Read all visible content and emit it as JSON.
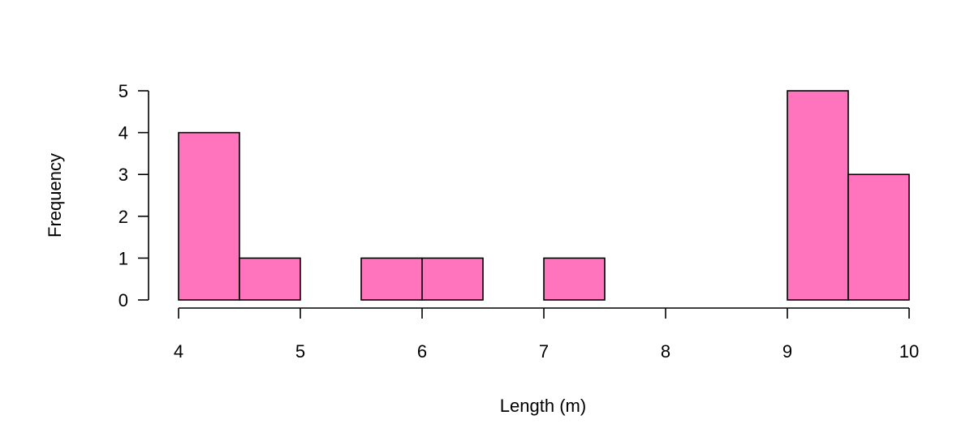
{
  "chart_data": {
    "type": "bar",
    "subtype": "histogram",
    "xlabel": "Length (m)",
    "ylabel": "Frequency",
    "bins": [
      {
        "x0": 4.0,
        "x1": 4.5,
        "count": 4
      },
      {
        "x0": 4.5,
        "x1": 5.0,
        "count": 1
      },
      {
        "x0": 5.0,
        "x1": 5.5,
        "count": 0
      },
      {
        "x0": 5.5,
        "x1": 6.0,
        "count": 1
      },
      {
        "x0": 6.0,
        "x1": 6.5,
        "count": 1
      },
      {
        "x0": 6.5,
        "x1": 7.0,
        "count": 0
      },
      {
        "x0": 7.0,
        "x1": 7.5,
        "count": 1
      },
      {
        "x0": 7.5,
        "x1": 8.0,
        "count": 0
      },
      {
        "x0": 8.0,
        "x1": 8.5,
        "count": 0
      },
      {
        "x0": 8.5,
        "x1": 9.0,
        "count": 0
      },
      {
        "x0": 9.0,
        "x1": 9.5,
        "count": 5
      },
      {
        "x0": 9.5,
        "x1": 10.0,
        "count": 3
      }
    ],
    "xlim": [
      4,
      10
    ],
    "ylim": [
      0,
      5
    ],
    "xticks": [
      "4",
      "5",
      "6",
      "7",
      "8",
      "9",
      "10"
    ],
    "yticks": [
      "0",
      "1",
      "2",
      "3",
      "4",
      "5"
    ],
    "grid": false,
    "bar_color": "#FF74BD",
    "edge_color": "#000000"
  }
}
